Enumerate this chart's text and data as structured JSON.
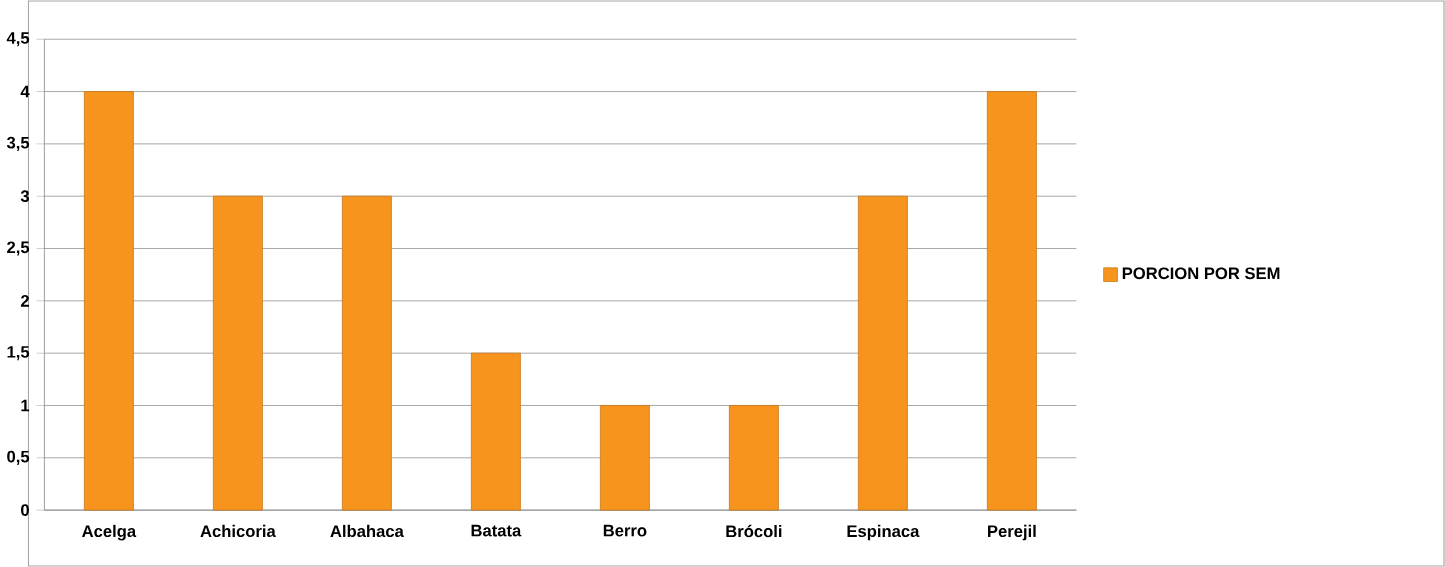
{
  "chart_data": {
    "type": "bar",
    "categories": [
      "Acelga",
      "Achicoria",
      "Albahaca",
      "Batata",
      "Berro",
      "Brócoli",
      "Espinaca",
      "Perejil"
    ],
    "series": [
      {
        "name": "PORCION POR SEM",
        "color": "#f7941d",
        "values": [
          4,
          3,
          3,
          1.5,
          1,
          1,
          3,
          4
        ]
      }
    ],
    "ylim": [
      0,
      4.5
    ],
    "yticks": [
      0,
      {
        "value": 0.5,
        "label": "0,5"
      },
      1,
      {
        "value": 1.5,
        "label": "1,5"
      },
      2,
      {
        "value": 2.5,
        "label": "2,5"
      },
      3,
      {
        "value": 3.5,
        "label": "3,5"
      },
      4,
      {
        "value": 4.5,
        "label": "4,5"
      }
    ],
    "grid": "y",
    "legend": "right"
  }
}
